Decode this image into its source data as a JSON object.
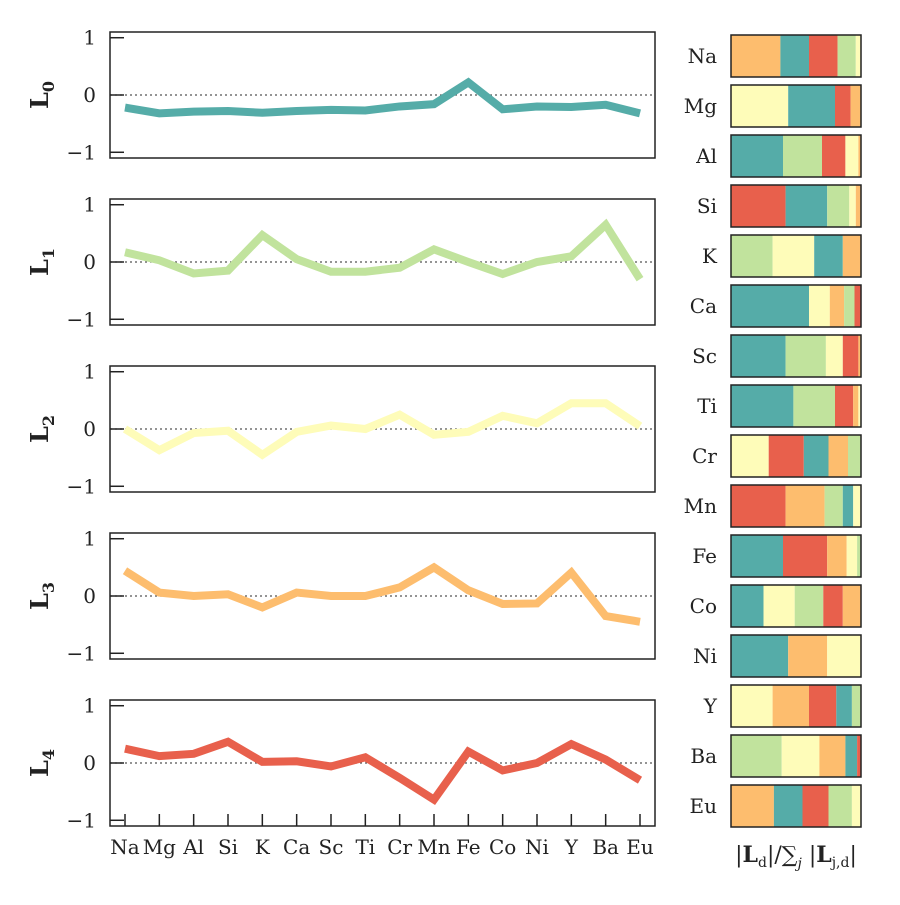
{
  "chart_data": [
    {
      "type": "line",
      "ylabel_base": "L",
      "ylabel_sub": "0",
      "color": "#55aca8",
      "ylim": [
        -1.1,
        1.1
      ],
      "yticks": [
        "1",
        "0",
        "−1"
      ],
      "categories": [
        "Na",
        "Mg",
        "Al",
        "Si",
        "K",
        "Ca",
        "Sc",
        "Ti",
        "Cr",
        "Mn",
        "Fe",
        "Co",
        "Ni",
        "Y",
        "Ba",
        "Eu"
      ],
      "values": [
        -0.22,
        -0.32,
        -0.29,
        -0.28,
        -0.31,
        -0.28,
        -0.26,
        -0.27,
        -0.2,
        -0.16,
        0.22,
        -0.25,
        -0.2,
        -0.21,
        -0.17,
        -0.32
      ],
      "reference_line": 0
    },
    {
      "type": "line",
      "ylabel_base": "L",
      "ylabel_sub": "1",
      "color": "#c1e39d",
      "ylim": [
        -1.1,
        1.1
      ],
      "yticks": [
        "1",
        "0",
        "−1"
      ],
      "categories": [
        "Na",
        "Mg",
        "Al",
        "Si",
        "K",
        "Ca",
        "Sc",
        "Ti",
        "Cr",
        "Mn",
        "Fe",
        "Co",
        "Ni",
        "Y",
        "Ba",
        "Eu"
      ],
      "values": [
        0.17,
        0.03,
        -0.2,
        -0.15,
        0.47,
        0.05,
        -0.17,
        -0.17,
        -0.1,
        0.22,
        0.0,
        -0.21,
        0.0,
        0.1,
        0.65,
        -0.3
      ],
      "reference_line": 0
    },
    {
      "type": "line",
      "ylabel_base": "L",
      "ylabel_sub": "2",
      "color": "#fefcb9",
      "ylim": [
        -1.1,
        1.1
      ],
      "yticks": [
        "1",
        "0",
        "−1"
      ],
      "categories": [
        "Na",
        "Mg",
        "Al",
        "Si",
        "K",
        "Ca",
        "Sc",
        "Ti",
        "Cr",
        "Mn",
        "Fe",
        "Co",
        "Ni",
        "Y",
        "Ba",
        "Eu"
      ],
      "values": [
        0.0,
        -0.37,
        -0.07,
        -0.03,
        -0.45,
        -0.05,
        0.06,
        0.0,
        0.25,
        -0.1,
        -0.05,
        0.23,
        0.1,
        0.45,
        0.45,
        0.05
      ],
      "reference_line": 0
    },
    {
      "type": "line",
      "ylabel_base": "L",
      "ylabel_sub": "3",
      "color": "#fdbd6e",
      "ylim": [
        -1.1,
        1.1
      ],
      "yticks": [
        "1",
        "0",
        "−1"
      ],
      "categories": [
        "Na",
        "Mg",
        "Al",
        "Si",
        "K",
        "Ca",
        "Sc",
        "Ti",
        "Cr",
        "Mn",
        "Fe",
        "Co",
        "Ni",
        "Y",
        "Ba",
        "Eu"
      ],
      "values": [
        0.44,
        0.06,
        0.0,
        0.03,
        -0.2,
        0.06,
        0.0,
        0.0,
        0.15,
        0.5,
        0.1,
        -0.14,
        -0.13,
        0.41,
        -0.35,
        -0.45
      ],
      "reference_line": 0
    },
    {
      "type": "line",
      "ylabel_base": "L",
      "ylabel_sub": "4",
      "color": "#e8604c",
      "ylim": [
        -1.1,
        1.1
      ],
      "yticks": [
        "1",
        "0",
        "−1"
      ],
      "categories": [
        "Na",
        "Mg",
        "Al",
        "Si",
        "K",
        "Ca",
        "Sc",
        "Ti",
        "Cr",
        "Mn",
        "Fe",
        "Co",
        "Ni",
        "Y",
        "Ba",
        "Eu"
      ],
      "values": [
        0.25,
        0.12,
        0.16,
        0.37,
        0.02,
        0.03,
        -0.06,
        0.1,
        -0.26,
        -0.64,
        0.2,
        -0.13,
        0.0,
        0.33,
        0.06,
        -0.3
      ],
      "reference_line": 0
    },
    {
      "type": "bar",
      "orientation": "horizontal-stacked",
      "xlabel": "|L_d| / ∑_j |L_j,d|",
      "categories": [
        "Na",
        "Mg",
        "Al",
        "Si",
        "K",
        "Ca",
        "Sc",
        "Ti",
        "Cr",
        "Mn",
        "Fe",
        "Co",
        "Ni",
        "Y",
        "Ba",
        "Eu"
      ],
      "rows": [
        [
          {
            "c": "L3",
            "v": 0.38
          },
          {
            "c": "L0",
            "v": 0.22
          },
          {
            "c": "L4",
            "v": 0.22
          },
          {
            "c": "L1",
            "v": 0.14
          },
          {
            "c": "L2",
            "v": 0.04
          }
        ],
        [
          {
            "c": "L2",
            "v": 0.44
          },
          {
            "c": "L0",
            "v": 0.36
          },
          {
            "c": "L4",
            "v": 0.12
          },
          {
            "c": "L3",
            "v": 0.08
          }
        ],
        [
          {
            "c": "L0",
            "v": 0.4
          },
          {
            "c": "L1",
            "v": 0.3
          },
          {
            "c": "L4",
            "v": 0.18
          },
          {
            "c": "L2",
            "v": 0.1
          },
          {
            "c": "L3",
            "v": 0.02
          }
        ],
        [
          {
            "c": "L4",
            "v": 0.42
          },
          {
            "c": "L0",
            "v": 0.32
          },
          {
            "c": "L1",
            "v": 0.17
          },
          {
            "c": "L2",
            "v": 0.05
          },
          {
            "c": "L3",
            "v": 0.04
          }
        ],
        [
          {
            "c": "L1",
            "v": 0.32
          },
          {
            "c": "L2",
            "v": 0.32
          },
          {
            "c": "L0",
            "v": 0.22
          },
          {
            "c": "L3",
            "v": 0.14
          }
        ],
        [
          {
            "c": "L0",
            "v": 0.6
          },
          {
            "c": "L2",
            "v": 0.16
          },
          {
            "c": "L3",
            "v": 0.11
          },
          {
            "c": "L1",
            "v": 0.08
          },
          {
            "c": "L4",
            "v": 0.05
          }
        ],
        [
          {
            "c": "L0",
            "v": 0.42
          },
          {
            "c": "L1",
            "v": 0.31
          },
          {
            "c": "L2",
            "v": 0.13
          },
          {
            "c": "L4",
            "v": 0.12
          },
          {
            "c": "L3",
            "v": 0.02
          }
        ],
        [
          {
            "c": "L0",
            "v": 0.48
          },
          {
            "c": "L1",
            "v": 0.32
          },
          {
            "c": "L4",
            "v": 0.14
          },
          {
            "c": "L3",
            "v": 0.04
          },
          {
            "c": "L2",
            "v": 0.02
          }
        ],
        [
          {
            "c": "L2",
            "v": 0.29
          },
          {
            "c": "L4",
            "v": 0.27
          },
          {
            "c": "L0",
            "v": 0.19
          },
          {
            "c": "L3",
            "v": 0.15
          },
          {
            "c": "L1",
            "v": 0.1
          }
        ],
        [
          {
            "c": "L4",
            "v": 0.42
          },
          {
            "c": "L3",
            "v": 0.3
          },
          {
            "c": "L1",
            "v": 0.14
          },
          {
            "c": "L0",
            "v": 0.08
          },
          {
            "c": "L2",
            "v": 0.06
          }
        ],
        [
          {
            "c": "L0",
            "v": 0.4
          },
          {
            "c": "L4",
            "v": 0.34
          },
          {
            "c": "L3",
            "v": 0.15
          },
          {
            "c": "L2",
            "v": 0.08
          },
          {
            "c": "L1",
            "v": 0.03
          }
        ],
        [
          {
            "c": "L0",
            "v": 0.25
          },
          {
            "c": "L2",
            "v": 0.24
          },
          {
            "c": "L1",
            "v": 0.22
          },
          {
            "c": "L4",
            "v": 0.15
          },
          {
            "c": "L3",
            "v": 0.14
          }
        ],
        [
          {
            "c": "L0",
            "v": 0.44
          },
          {
            "c": "L3",
            "v": 0.3
          },
          {
            "c": "L2",
            "v": 0.26
          }
        ],
        [
          {
            "c": "L2",
            "v": 0.32
          },
          {
            "c": "L3",
            "v": 0.28
          },
          {
            "c": "L4",
            "v": 0.21
          },
          {
            "c": "L0",
            "v": 0.12
          },
          {
            "c": "L1",
            "v": 0.07
          }
        ],
        [
          {
            "c": "L1",
            "v": 0.39
          },
          {
            "c": "L2",
            "v": 0.29
          },
          {
            "c": "L3",
            "v": 0.2
          },
          {
            "c": "L0",
            "v": 0.09
          },
          {
            "c": "L4",
            "v": 0.03
          }
        ],
        [
          {
            "c": "L3",
            "v": 0.33
          },
          {
            "c": "L0",
            "v": 0.22
          },
          {
            "c": "L4",
            "v": 0.2
          },
          {
            "c": "L1",
            "v": 0.18
          },
          {
            "c": "L2",
            "v": 0.07
          }
        ]
      ],
      "colors": {
        "L0": "#55aca8",
        "L1": "#c1e39d",
        "L2": "#fefcb9",
        "L3": "#fdbd6e",
        "L4": "#e8604c"
      }
    }
  ]
}
